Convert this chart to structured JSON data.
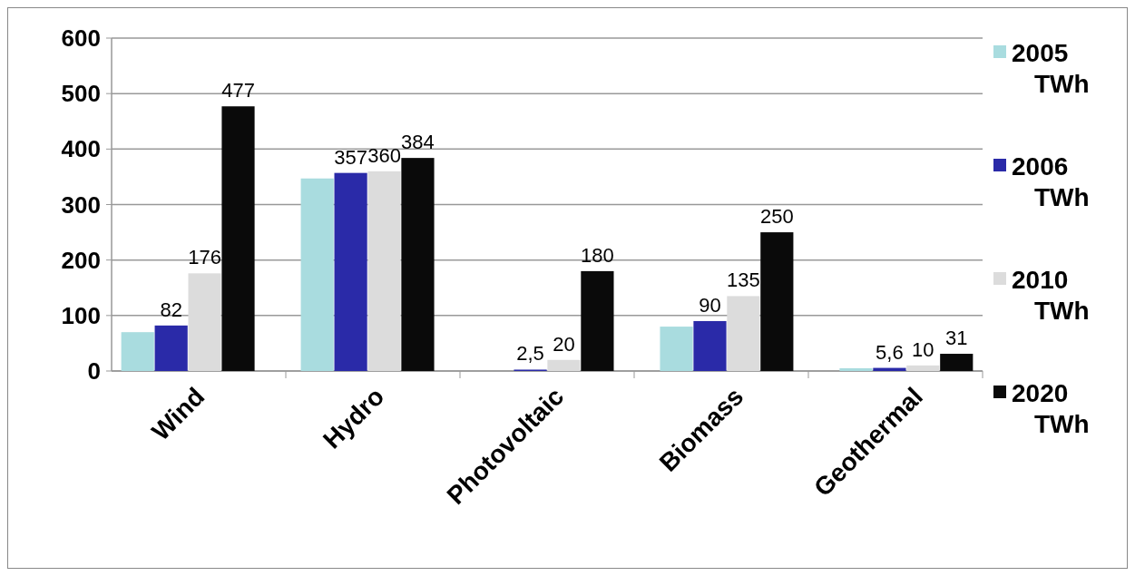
{
  "chart_data": {
    "type": "bar",
    "categories": [
      "Wind",
      "Hydro",
      "Photovoltaic",
      "Biomass",
      "Geothermal"
    ],
    "series": [
      {
        "name": "2005 TWh",
        "color": "#a9dcdf",
        "values": [
          70,
          347,
          0,
          80,
          5
        ],
        "value_labels": [
          null,
          null,
          null,
          null,
          null
        ]
      },
      {
        "name": "2006 TWh",
        "color": "#2a2aa8",
        "values": [
          82,
          357,
          2.5,
          90,
          5.6
        ],
        "value_labels": [
          "82",
          "357",
          "2,5",
          "90",
          "5,6"
        ]
      },
      {
        "name": "2010 TWh",
        "color": "#dcdcdc",
        "values": [
          176,
          360,
          20,
          135,
          10
        ],
        "value_labels": [
          "176",
          "360",
          "20",
          "135",
          "10"
        ]
      },
      {
        "name": "2020 TWh",
        "color": "#0a0a0a",
        "values": [
          477,
          384,
          180,
          250,
          31
        ],
        "value_labels": [
          "477",
          "384",
          "180",
          "250",
          "31"
        ]
      }
    ],
    "ylim": [
      0,
      600
    ],
    "yticks": [
      0,
      100,
      200,
      300,
      400,
      500,
      600
    ],
    "grid": "y",
    "legend": "right"
  }
}
